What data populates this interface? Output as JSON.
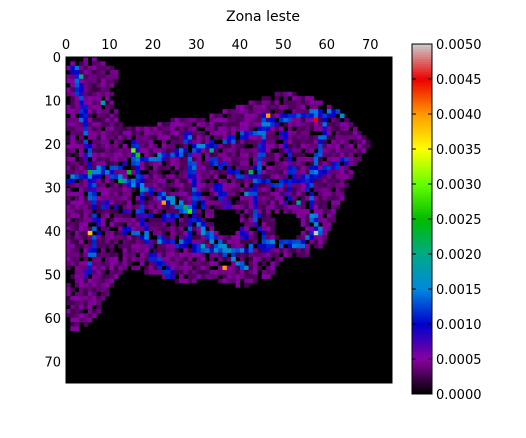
{
  "chart_data": {
    "type": "heatmap",
    "title": "Zona leste",
    "xlabel": "",
    "ylabel": "",
    "grid_size": 75,
    "xlim": [
      0,
      75
    ],
    "ylim": [
      75,
      0
    ],
    "x_ticks": [
      "0",
      "10",
      "20",
      "30",
      "40",
      "50",
      "60",
      "70"
    ],
    "y_ticks": [
      "0",
      "10",
      "20",
      "30",
      "40",
      "50",
      "60",
      "70"
    ],
    "colorbar": {
      "range": [
        0.0,
        0.005
      ],
      "ticks": [
        "0.0000",
        "0.0005",
        "0.0010",
        "0.0015",
        "0.0020",
        "0.0025",
        "0.0030",
        "0.0035",
        "0.0040",
        "0.0045",
        "0.0050"
      ],
      "colormap": "nipy_spectral",
      "colors": [
        "#000000",
        "#8800a0",
        "#0000cc",
        "#0088dd",
        "#00aa88",
        "#00bb00",
        "#66ff00",
        "#ffff00",
        "#ff9900",
        "#ee0000",
        "#cccccc"
      ]
    },
    "background_value": 0.0,
    "typical_value": 0.0004,
    "region_outline": [
      {
        "x": 0,
        "y": 2
      },
      {
        "x": 5,
        "y": 0
      },
      {
        "x": 9,
        "y": 1
      },
      {
        "x": 12,
        "y": 3
      },
      {
        "x": 11,
        "y": 10
      },
      {
        "x": 13,
        "y": 16
      },
      {
        "x": 20,
        "y": 16
      },
      {
        "x": 25,
        "y": 14
      },
      {
        "x": 32,
        "y": 14
      },
      {
        "x": 38,
        "y": 12
      },
      {
        "x": 44,
        "y": 10
      },
      {
        "x": 50,
        "y": 8
      },
      {
        "x": 56,
        "y": 9
      },
      {
        "x": 62,
        "y": 12
      },
      {
        "x": 67,
        "y": 16
      },
      {
        "x": 70,
        "y": 20
      },
      {
        "x": 66,
        "y": 26
      },
      {
        "x": 65,
        "y": 30
      },
      {
        "x": 62,
        "y": 36
      },
      {
        "x": 60,
        "y": 43
      },
      {
        "x": 55,
        "y": 46
      },
      {
        "x": 50,
        "y": 46
      },
      {
        "x": 47,
        "y": 51
      },
      {
        "x": 40,
        "y": 53
      },
      {
        "x": 34,
        "y": 51
      },
      {
        "x": 27,
        "y": 52
      },
      {
        "x": 20,
        "y": 50
      },
      {
        "x": 14,
        "y": 48
      },
      {
        "x": 11,
        "y": 52
      },
      {
        "x": 8,
        "y": 58
      },
      {
        "x": 5,
        "y": 62
      },
      {
        "x": 1,
        "y": 63
      },
      {
        "x": 0,
        "y": 58
      }
    ],
    "holes": [
      {
        "x": 37,
        "y": 38,
        "r": 3.5
      },
      {
        "x": 51,
        "y": 39,
        "r": 3
      }
    ],
    "high_value_paths": [
      {
        "value": 0.0012,
        "points": [
          {
            "x": 0,
            "y": 28
          },
          {
            "x": 8,
            "y": 27
          },
          {
            "x": 15,
            "y": 24
          },
          {
            "x": 22,
            "y": 23
          },
          {
            "x": 30,
            "y": 21
          },
          {
            "x": 38,
            "y": 19
          },
          {
            "x": 44,
            "y": 17
          },
          {
            "x": 50,
            "y": 14
          },
          {
            "x": 58,
            "y": 13
          },
          {
            "x": 63,
            "y": 13
          }
        ]
      },
      {
        "value": 0.0011,
        "points": [
          {
            "x": 2,
            "y": 3
          },
          {
            "x": 4,
            "y": 12
          },
          {
            "x": 5,
            "y": 22
          },
          {
            "x": 6,
            "y": 30
          },
          {
            "x": 7,
            "y": 40
          },
          {
            "x": 5,
            "y": 50
          }
        ]
      },
      {
        "value": 0.0013,
        "points": [
          {
            "x": 8,
            "y": 26
          },
          {
            "x": 15,
            "y": 29
          },
          {
            "x": 22,
            "y": 32
          },
          {
            "x": 28,
            "y": 35
          },
          {
            "x": 32,
            "y": 40
          },
          {
            "x": 36,
            "y": 44
          },
          {
            "x": 41,
            "y": 48
          }
        ]
      },
      {
        "value": 0.0012,
        "points": [
          {
            "x": 14,
            "y": 40
          },
          {
            "x": 22,
            "y": 42
          },
          {
            "x": 30,
            "y": 44
          },
          {
            "x": 38,
            "y": 45
          },
          {
            "x": 46,
            "y": 43
          },
          {
            "x": 54,
            "y": 43
          },
          {
            "x": 58,
            "y": 40
          }
        ]
      },
      {
        "value": 0.0011,
        "points": [
          {
            "x": 46,
            "y": 14
          },
          {
            "x": 45,
            "y": 22
          },
          {
            "x": 43,
            "y": 30
          },
          {
            "x": 44,
            "y": 38
          },
          {
            "x": 46,
            "y": 44
          }
        ]
      },
      {
        "value": 0.0012,
        "points": [
          {
            "x": 60,
            "y": 14
          },
          {
            "x": 58,
            "y": 22
          },
          {
            "x": 56,
            "y": 30
          },
          {
            "x": 57,
            "y": 38
          }
        ]
      },
      {
        "value": 0.001,
        "points": [
          {
            "x": 16,
            "y": 20
          },
          {
            "x": 17,
            "y": 30
          },
          {
            "x": 18,
            "y": 38
          },
          {
            "x": 20,
            "y": 46
          },
          {
            "x": 24,
            "y": 50
          }
        ]
      },
      {
        "value": 0.0011,
        "points": [
          {
            "x": 28,
            "y": 18
          },
          {
            "x": 29,
            "y": 26
          },
          {
            "x": 30,
            "y": 33
          },
          {
            "x": 28,
            "y": 42
          }
        ]
      },
      {
        "value": 0.001,
        "points": [
          {
            "x": 34,
            "y": 24
          },
          {
            "x": 40,
            "y": 27
          },
          {
            "x": 48,
            "y": 29
          },
          {
            "x": 56,
            "y": 28
          },
          {
            "x": 64,
            "y": 24
          }
        ]
      },
      {
        "value": 0.001,
        "points": [
          {
            "x": 9,
            "y": 34
          },
          {
            "x": 16,
            "y": 36
          },
          {
            "x": 24,
            "y": 37
          },
          {
            "x": 31,
            "y": 34
          }
        ]
      },
      {
        "value": 0.0009,
        "points": [
          {
            "x": 35,
            "y": 30
          },
          {
            "x": 38,
            "y": 36
          },
          {
            "x": 41,
            "y": 41
          }
        ]
      },
      {
        "value": 0.0009,
        "points": [
          {
            "x": 50,
            "y": 18
          },
          {
            "x": 52,
            "y": 26
          },
          {
            "x": 51,
            "y": 33
          }
        ]
      }
    ],
    "hot_spots": [
      {
        "x": 46,
        "y": 13,
        "value": 0.004
      },
      {
        "x": 57,
        "y": 14,
        "value": 0.0045
      },
      {
        "x": 28,
        "y": 35,
        "value": 0.0028
      },
      {
        "x": 15,
        "y": 21,
        "value": 0.003
      },
      {
        "x": 16,
        "y": 22,
        "value": 0.0026
      },
      {
        "x": 5,
        "y": 26,
        "value": 0.0025
      },
      {
        "x": 22,
        "y": 33,
        "value": 0.004
      },
      {
        "x": 14,
        "y": 26,
        "value": 0.0024
      },
      {
        "x": 12,
        "y": 28,
        "value": 0.0022
      },
      {
        "x": 36,
        "y": 48,
        "value": 0.004
      },
      {
        "x": 5,
        "y": 40,
        "value": 0.0038
      },
      {
        "x": 57,
        "y": 40,
        "value": 0.005
      },
      {
        "x": 53,
        "y": 33,
        "value": 0.0018
      },
      {
        "x": 42,
        "y": 26,
        "value": 0.0022
      },
      {
        "x": 3,
        "y": 4,
        "value": 0.002
      },
      {
        "x": 8,
        "y": 10,
        "value": 0.0018
      },
      {
        "x": 27,
        "y": 34,
        "value": 0.0022
      },
      {
        "x": 33,
        "y": 21,
        "value": 0.002
      },
      {
        "x": 31,
        "y": 43,
        "value": 0.0018
      },
      {
        "x": 41,
        "y": 31,
        "value": 0.0016
      }
    ]
  }
}
